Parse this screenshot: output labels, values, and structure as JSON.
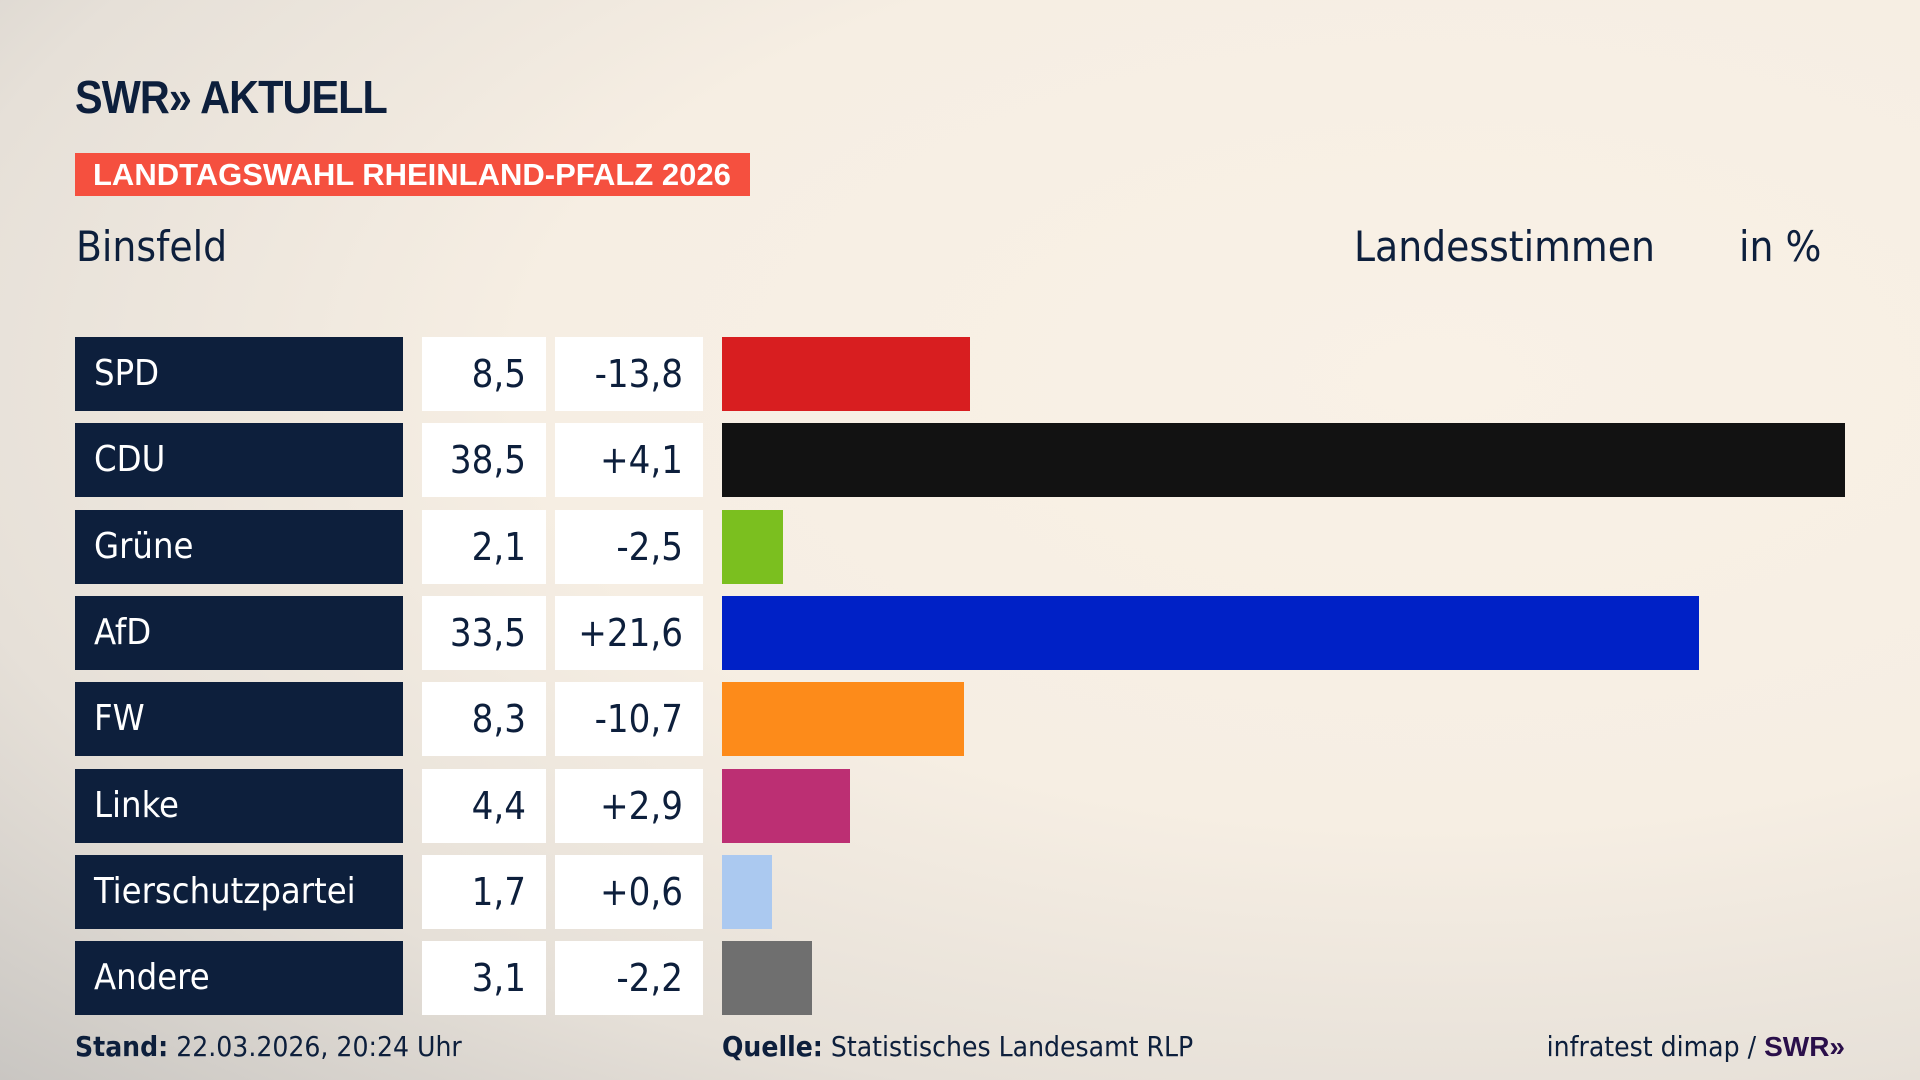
{
  "brand": {
    "logo": "SWR» AKTUELL"
  },
  "banner": "LANDTAGSWAHL RHEINLAND-PFALZ 2026",
  "location": "Binsfeld",
  "header": {
    "vote_type": "Landesstimmen",
    "unit": "in %"
  },
  "chart_data": {
    "type": "bar",
    "orientation": "horizontal",
    "categories": [
      "SPD",
      "CDU",
      "Grüne",
      "AfD",
      "FW",
      "Linke",
      "Tierschutzpartei",
      "Andere"
    ],
    "values": [
      8.5,
      38.5,
      2.1,
      33.5,
      8.3,
      4.4,
      1.7,
      3.1
    ],
    "value_labels": [
      "8,5",
      "38,5",
      "2,1",
      "33,5",
      "8,3",
      "4,4",
      "1,7",
      "3,1"
    ],
    "diff_labels": [
      "-13,8",
      "+4,1",
      "-2,5",
      "+21,6",
      "-10,7",
      "+2,9",
      "+0,6",
      "-2,2"
    ],
    "colors": [
      "#d81e20",
      "#121212",
      "#7bbf1f",
      "#0021c6",
      "#fd8b1a",
      "#bc2f73",
      "#abc9f0",
      "#6f6f6f"
    ],
    "xlim": [
      0,
      38.5
    ]
  },
  "footer": {
    "stand_label": "Stand:",
    "stand_value": "22.03.2026, 20:24 Uhr",
    "source_label": "Quelle:",
    "source_value": "Statistisches Landesamt RLP",
    "credit": "infratest dimap /",
    "credit_brand": "SWR»"
  }
}
